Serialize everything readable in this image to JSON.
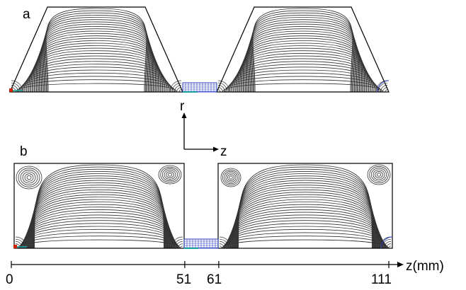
{
  "panels": [
    {
      "label": "a",
      "profile": "trapezoid"
    },
    {
      "label": "b",
      "profile": "rectangle"
    }
  ],
  "axes_indicator": {
    "vertical_label": "r",
    "horizontal_label": "z"
  },
  "z_axis": {
    "label": "z(mm)",
    "range": [
      0,
      111
    ],
    "ticks": [
      {
        "value": 0,
        "label": "0"
      },
      {
        "value": 51,
        "label": "51"
      },
      {
        "value": 61,
        "label": "61"
      },
      {
        "value": 111,
        "label": "111"
      }
    ]
  },
  "colors": {
    "streamline": "#333333",
    "outline": "#000000",
    "mesh_blue": "#2a3fbf",
    "mesh_teal": "#1aa5a0",
    "electrode_red": "#cc2200"
  }
}
